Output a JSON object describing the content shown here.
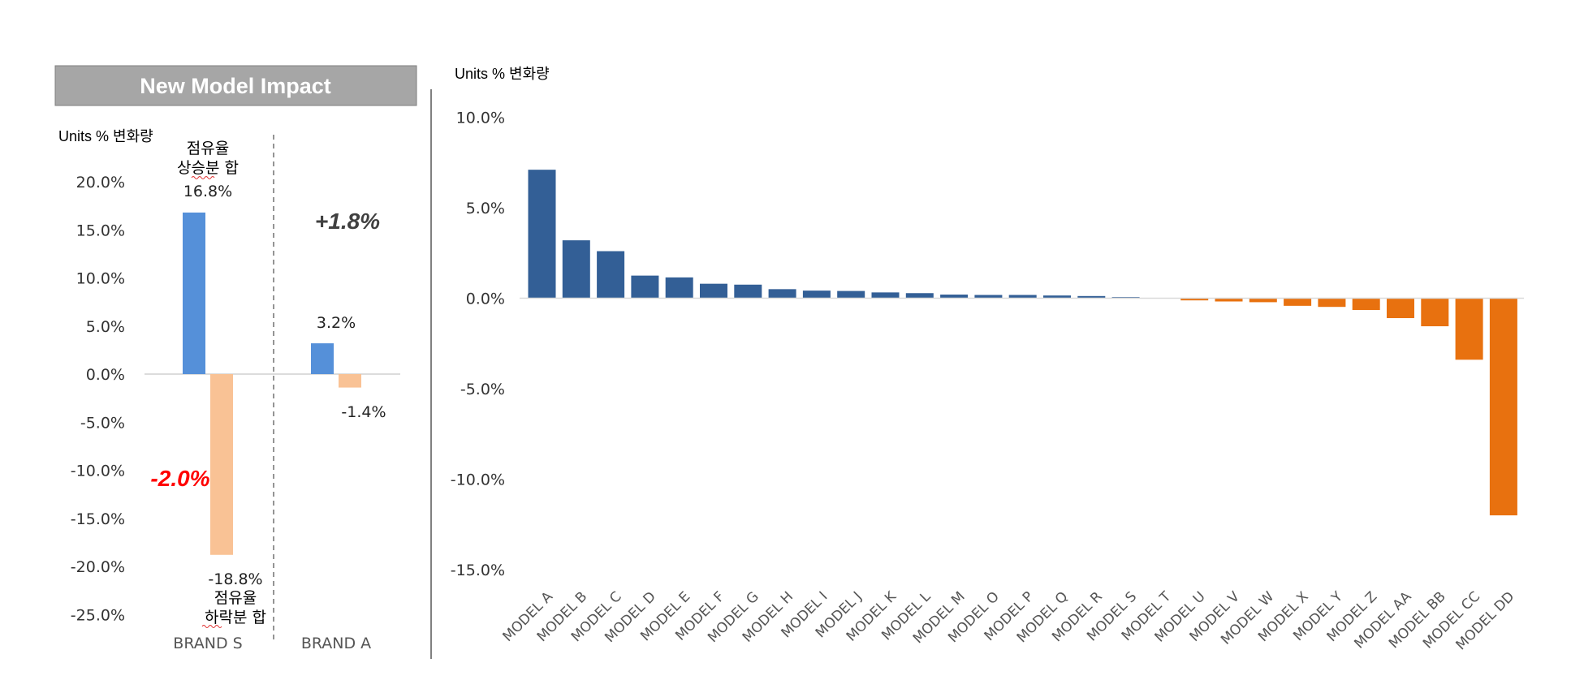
{
  "panel_title": "New Model Impact",
  "colors": {
    "left_positive": "#5590d9",
    "left_negative": "#f9c295",
    "right_positive": "#335f96",
    "right_negative": "#e8710f",
    "title_bg": "#a6a6a6",
    "big_negative_text": "#ff0000",
    "big_positive_text": "#404040"
  },
  "chart_data": [
    {
      "type": "bar",
      "ylabel": "Units % 변화량",
      "ylim": [
        -25,
        20
      ],
      "yticks": [
        "20.0%",
        "15.0%",
        "10.0%",
        "5.0%",
        "0.0%",
        "-5.0%",
        "-10.0%",
        "-15.0%",
        "-20.0%",
        "-25.0%"
      ],
      "categories": [
        "BRAND S",
        "BRAND A"
      ],
      "series": [
        {
          "name": "점유율 상승분 합",
          "values": [
            16.8,
            3.2
          ]
        },
        {
          "name": "점유율 하락분 합",
          "values": [
            -18.8,
            -1.4
          ]
        }
      ],
      "data_labels": {
        "brand_s_up": "16.8%",
        "brand_s_down": "-18.8%",
        "brand_a_up": "3.2%",
        "brand_a_down": "-1.4%"
      },
      "annotations": {
        "up_line1": "점유율",
        "up_line2": "상승분 합",
        "down_line1": "점유율",
        "down_line2": "하락분 합",
        "brand_s_net": "-2.0%",
        "brand_a_net": "+1.8%"
      }
    },
    {
      "type": "bar",
      "ylabel": "Units % 변화량",
      "ylim": [
        -15,
        10
      ],
      "yticks": [
        "10.0%",
        "5.0%",
        "0.0%",
        "-5.0%",
        "-10.0%",
        "-15.0%"
      ],
      "categories": [
        "MODEL A",
        "MODEL B",
        "MODEL C",
        "MODEL D",
        "MODEL E",
        "MODEL F",
        "MODEL G",
        "MODEL H",
        "MODEL I",
        "MODEL J",
        "MODEL K",
        "MODEL L",
        "MODEL M",
        "MODEL O",
        "MODEL P",
        "MODEL Q",
        "MODEL R",
        "MODEL S",
        "MODEL T",
        "MODEL U",
        "MODEL V",
        "MODEL W",
        "MODEL X",
        "MODEL Y",
        "MODEL Z",
        "MODEL AA",
        "MODEL BB",
        "MODEL CC",
        "MODEL DD"
      ],
      "values": [
        7.1,
        3.2,
        2.6,
        1.25,
        1.15,
        0.8,
        0.75,
        0.5,
        0.42,
        0.4,
        0.32,
        0.28,
        0.2,
        0.18,
        0.18,
        0.15,
        0.12,
        0.06,
        0.0,
        -0.12,
        -0.18,
        -0.22,
        -0.42,
        -0.48,
        -0.65,
        -1.1,
        -1.55,
        -3.4,
        -12.0
      ]
    }
  ]
}
